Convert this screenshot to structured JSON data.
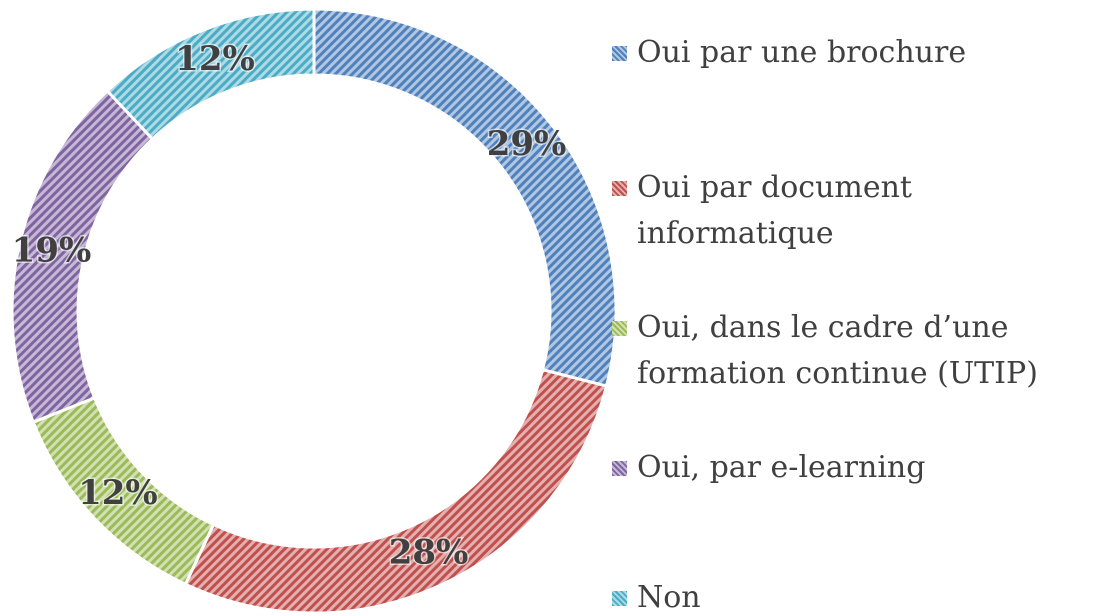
{
  "chart_data": {
    "type": "donut",
    "categories": [
      "Oui par une brochure",
      "Oui par document informatique",
      "Oui, dans le cadre d’une formation continue (UTIP)",
      "Oui, par e-learning",
      "Non"
    ],
    "values": [
      29,
      28,
      12,
      19,
      12
    ],
    "value_labels": [
      "29%",
      "28%",
      "12%",
      "19%",
      "12%"
    ],
    "colors": [
      "#4f81bd",
      "#c0504d",
      "#9bbb59",
      "#8064a2",
      "#4bacc6"
    ],
    "legend": "right"
  }
}
